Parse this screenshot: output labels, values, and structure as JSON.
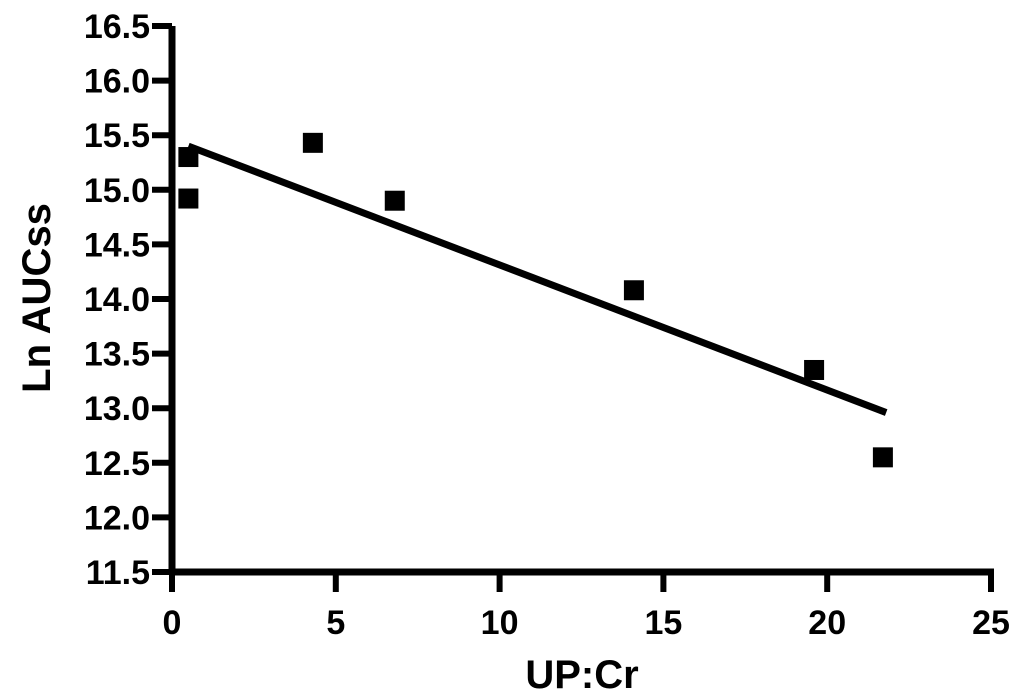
{
  "chart_data": {
    "type": "scatter",
    "xlabel": "UP:Cr",
    "ylabel": "Ln AUCss",
    "xlim": [
      0,
      25
    ],
    "ylim": [
      11.5,
      16.5
    ],
    "x_ticks": [
      "0",
      "5",
      "10",
      "15",
      "20",
      "25"
    ],
    "y_ticks": [
      "11.5",
      "12.0",
      "12.5",
      "13.0",
      "13.5",
      "14.0",
      "14.5",
      "15.0",
      "15.5",
      "16.0",
      "16.5"
    ],
    "grid": false,
    "legend": "none",
    "marker": "square",
    "marker_color": "#000000",
    "series": [
      {
        "points": [
          {
            "x": 0.5,
            "y": 15.3
          },
          {
            "x": 0.5,
            "y": 14.92
          },
          {
            "x": 4.3,
            "y": 15.43
          },
          {
            "x": 6.8,
            "y": 14.9
          },
          {
            "x": 14.1,
            "y": 14.08
          },
          {
            "x": 19.6,
            "y": 13.35
          },
          {
            "x": 21.7,
            "y": 12.55
          }
        ]
      }
    ],
    "regression_line": {
      "x_start": 0.5,
      "y_start": 15.4,
      "x_end": 21.8,
      "y_end": 12.96,
      "color": "#000000"
    }
  }
}
